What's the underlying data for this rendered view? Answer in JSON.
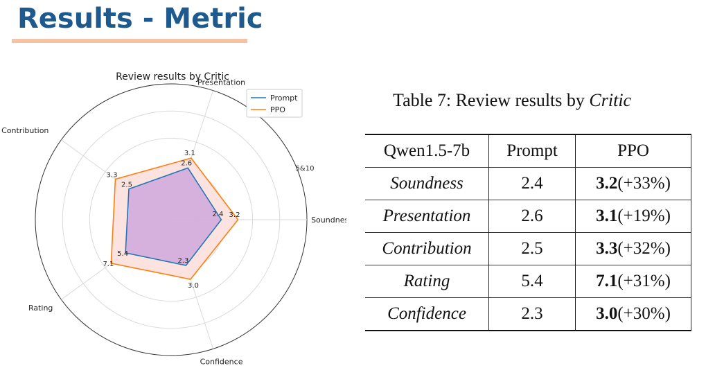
{
  "slide": {
    "title": "Results - Metric"
  },
  "chart_data": {
    "type": "radar",
    "title": "Review results by Critic",
    "axes": [
      "Soundness",
      "Presentation",
      "Contribution",
      "Rating",
      "Confidence"
    ],
    "scale_label": "5&10",
    "legend_placement": "top-right",
    "series": [
      {
        "name": "Prompt",
        "values": [
          2.4,
          2.6,
          2.5,
          5.4,
          2.3
        ],
        "labels": [
          "2.4",
          "2.6",
          "2.5",
          "5.4",
          "2.3"
        ],
        "color": "#1f77b4",
        "fill": "#c9a0dc"
      },
      {
        "name": "PPO",
        "values": [
          3.2,
          3.1,
          3.3,
          7.1,
          3.0
        ],
        "labels": [
          "3.2",
          "3.1",
          "3.3",
          "7.1",
          "3.0"
        ],
        "color": "#ff7f0e",
        "fill": "#fde0dd"
      }
    ]
  },
  "table": {
    "caption_prefix": "Table 7: Review results by ",
    "caption_emph": "Critic",
    "header": [
      "Qwen1.5-7b",
      "Prompt",
      "PPO"
    ],
    "rows": [
      {
        "metric": "Soundness",
        "prompt": "2.4",
        "ppo_bold": "3.2",
        "ppo_gain": "(+33%)"
      },
      {
        "metric": "Presentation",
        "prompt": "2.6",
        "ppo_bold": "3.1",
        "ppo_gain": "(+19%)"
      },
      {
        "metric": "Contribution",
        "prompt": "2.5",
        "ppo_bold": "3.3",
        "ppo_gain": "(+32%)"
      },
      {
        "metric": "Rating",
        "prompt": "5.4",
        "ppo_bold": "7.1",
        "ppo_gain": "(+31%)"
      },
      {
        "metric": "Confidence",
        "prompt": "2.3",
        "ppo_bold": "3.0",
        "ppo_gain": "(+30%)"
      }
    ]
  }
}
